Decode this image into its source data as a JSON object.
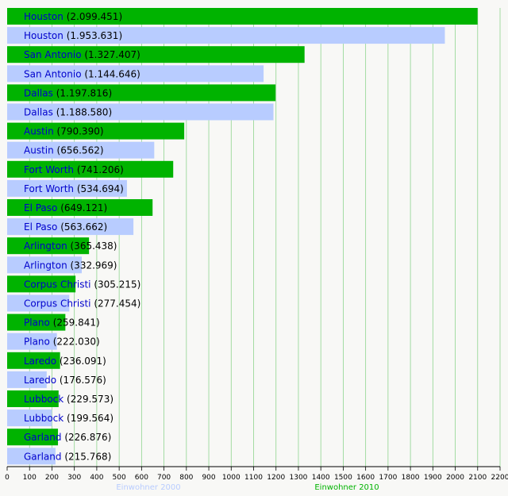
{
  "chart_data": {
    "type": "bar",
    "orientation": "horizontal",
    "xlim": [
      0,
      2200
    ],
    "x_ticks": [
      0,
      100,
      200,
      300,
      400,
      500,
      600,
      700,
      800,
      900,
      1000,
      1100,
      1200,
      1300,
      1400,
      1500,
      1600,
      1700,
      1800,
      1900,
      2000,
      2100,
      2200
    ],
    "grid": "vertical lines every 100",
    "legend_position": "bottom",
    "series": [
      {
        "name": "Einwohner 2010",
        "color": "#00b300"
      },
      {
        "name": "Einwohner 2000",
        "color": "#b8ccff"
      }
    ],
    "bars": [
      {
        "city": "Houston",
        "value_text": "(2.099.451)",
        "value": 2099.451,
        "series": 0
      },
      {
        "city": "Houston",
        "value_text": "(1.953.631)",
        "value": 1953.631,
        "series": 1
      },
      {
        "city": "San Antonio",
        "value_text": "(1.327.407)",
        "value": 1327.407,
        "series": 0
      },
      {
        "city": "San Antonio",
        "value_text": "(1.144.646)",
        "value": 1144.646,
        "series": 1
      },
      {
        "city": "Dallas",
        "value_text": "(1.197.816)",
        "value": 1197.816,
        "series": 0
      },
      {
        "city": "Dallas",
        "value_text": "(1.188.580)",
        "value": 1188.58,
        "series": 1
      },
      {
        "city": "Austin",
        "value_text": "(790.390)",
        "value": 790.39,
        "series": 0
      },
      {
        "city": "Austin",
        "value_text": "(656.562)",
        "value": 656.562,
        "series": 1
      },
      {
        "city": "Fort Worth",
        "value_text": "(741.206)",
        "value": 741.206,
        "series": 0
      },
      {
        "city": "Fort Worth",
        "value_text": "(534.694)",
        "value": 534.694,
        "series": 1
      },
      {
        "city": "El Paso",
        "value_text": "(649.121)",
        "value": 649.121,
        "series": 0
      },
      {
        "city": "El Paso",
        "value_text": "(563.662)",
        "value": 563.662,
        "series": 1
      },
      {
        "city": "Arlington",
        "value_text": "(365.438)",
        "value": 365.438,
        "series": 0
      },
      {
        "city": "Arlington",
        "value_text": "(332.969)",
        "value": 332.969,
        "series": 1
      },
      {
        "city": "Corpus Christi",
        "value_text": "(305.215)",
        "value": 305.215,
        "series": 0
      },
      {
        "city": "Corpus Christi",
        "value_text": "(277.454)",
        "value": 277.454,
        "series": 1
      },
      {
        "city": "Plano",
        "value_text": "(259.841)",
        "value": 259.841,
        "series": 0
      },
      {
        "city": "Plano",
        "value_text": "(222.030)",
        "value": 222.03,
        "series": 1
      },
      {
        "city": "Laredo",
        "value_text": "(236.091)",
        "value": 236.091,
        "series": 0
      },
      {
        "city": "Laredo",
        "value_text": "(176.576)",
        "value": 176.576,
        "series": 1
      },
      {
        "city": "Lubbock",
        "value_text": "(229.573)",
        "value": 229.573,
        "series": 0
      },
      {
        "city": "Lubbock",
        "value_text": "(199.564)",
        "value": 199.564,
        "series": 1
      },
      {
        "city": "Garland",
        "value_text": "(226.876)",
        "value": 226.876,
        "series": 0
      },
      {
        "city": "Garland",
        "value_text": "(215.768)",
        "value": 215.768,
        "series": 1
      }
    ]
  }
}
